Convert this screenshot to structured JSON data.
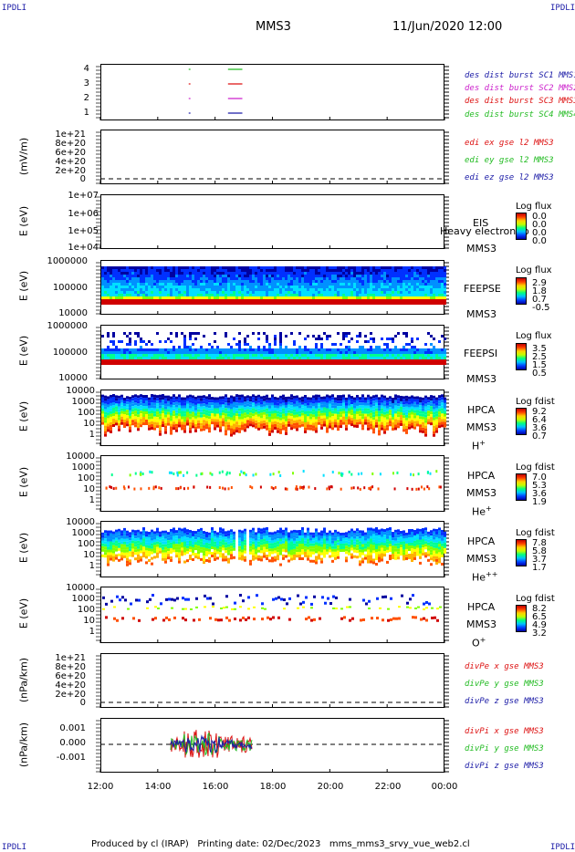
{
  "corners": {
    "tl": "IPDLI",
    "tr": "IPDLI",
    "bl": "IPDLI",
    "br": "IPDLI"
  },
  "header": {
    "mission": "MMS3",
    "datetime": "11/Jun/2020 12:00"
  },
  "footer": {
    "producer": "Produced by cl (IRAP)",
    "printing": "Printing date: 02/Dec/2023",
    "file": "mms_mms3_srvy_vue_web2.cl"
  },
  "x_ticks": [
    "12:00",
    "14:00",
    "16:00",
    "18:00",
    "20:00",
    "22:00",
    "00:00"
  ],
  "colors": {
    "c1": "#1a1aa6",
    "c2": "#cc22cc",
    "c3": "#dd1111",
    "c4": "#22bb22"
  },
  "chart_data": [
    {
      "type": "scatter",
      "id": "burst",
      "yticks": [
        "4",
        "3",
        "2",
        "1"
      ],
      "legend": [
        "des dist burst SC1 MMS1",
        "des dist burst SC2 MMS2",
        "des dist burst SC3 MMS3",
        "des dist burst SC4 MMS4"
      ],
      "segments": [
        {
          "sc": 4,
          "x": [
            15.08,
            15.14
          ]
        },
        {
          "sc": 4,
          "x": [
            16.45,
            16.95
          ]
        },
        {
          "sc": 3,
          "x": [
            15.08,
            15.14
          ]
        },
        {
          "sc": 3,
          "x": [
            16.45,
            16.95
          ]
        },
        {
          "sc": 2,
          "x": [
            15.08,
            15.14
          ]
        },
        {
          "sc": 2,
          "x": [
            16.45,
            16.95
          ]
        },
        {
          "sc": 1,
          "x": [
            15.08,
            15.14
          ]
        },
        {
          "sc": 1,
          "x": [
            16.45,
            16.95
          ]
        }
      ]
    },
    {
      "type": "line",
      "id": "edi",
      "ylabel": "(mV/m)",
      "yticks": [
        "1e+21",
        "8e+20",
        "6e+20",
        "4e+20",
        "2e+20",
        "0"
      ],
      "legend": [
        "edi ex gse l2 MMS3",
        "edi ey gse l2 MMS3",
        "edi ez gse l2 MMS3"
      ]
    },
    {
      "type": "heatmap",
      "id": "eis",
      "ylabel": "E (eV)",
      "yticks": [
        "1e+07",
        "1e+06",
        "1e+05",
        "1e+04"
      ],
      "name": [
        "EIS",
        "MMS3"
      ],
      "overlay": "Heavy electron to",
      "cbar_title": "Log flux",
      "cbar_ticks": [
        "0.0",
        "0.0",
        "0.0",
        "0.0"
      ]
    },
    {
      "type": "heatmap",
      "id": "feepse",
      "ylabel": "E (eV)",
      "yticks": [
        "1000000",
        "100000",
        "10000"
      ],
      "name": [
        "FEEPSE",
        "MMS3"
      ],
      "cbar_title": "Log flux",
      "cbar_ticks": [
        "2.9",
        "1.8",
        "0.7",
        "-0.5"
      ]
    },
    {
      "type": "heatmap",
      "id": "feepsi",
      "ylabel": "E (eV)",
      "yticks": [
        "1000000",
        "100000",
        "10000"
      ],
      "name": [
        "FEEPSI",
        "MMS3"
      ],
      "cbar_title": "Log flux",
      "cbar_ticks": [
        "3.5",
        "2.5",
        "1.5",
        "0.5"
      ]
    },
    {
      "type": "heatmap",
      "id": "hpca_h",
      "ylabel": "E (eV)",
      "yticks": [
        "10000",
        "1000",
        "100",
        "10",
        "1"
      ],
      "name": [
        "HPCA",
        "MMS3",
        "H",
        "+"
      ],
      "cbar_title": "Log fdist",
      "cbar_ticks": [
        "9.2",
        "6.4",
        "3.6",
        "0.7"
      ]
    },
    {
      "type": "heatmap",
      "id": "hpca_he1",
      "ylabel": "E (eV)",
      "yticks": [
        "10000",
        "1000",
        "100",
        "10",
        "1"
      ],
      "name": [
        "HPCA",
        "MMS3",
        "He",
        "+"
      ],
      "cbar_title": "Log fdist",
      "cbar_ticks": [
        "7.0",
        "5.3",
        "3.6",
        "1.9"
      ]
    },
    {
      "type": "heatmap",
      "id": "hpca_he2",
      "ylabel": "E (eV)",
      "yticks": [
        "10000",
        "1000",
        "100",
        "10",
        "1"
      ],
      "name": [
        "HPCA",
        "MMS3",
        "He",
        "++"
      ],
      "cbar_title": "Log fdist",
      "cbar_ticks": [
        "7.8",
        "5.8",
        "3.7",
        "1.7"
      ]
    },
    {
      "type": "heatmap",
      "id": "hpca_o",
      "ylabel": "E (eV)",
      "yticks": [
        "10000",
        "1000",
        "100",
        "10",
        "1"
      ],
      "name": [
        "HPCA",
        "MMS3",
        "O",
        "+"
      ],
      "cbar_title": "Log fdist",
      "cbar_ticks": [
        "8.2",
        "6.5",
        "4.9",
        "3.2"
      ]
    },
    {
      "type": "line",
      "id": "divpe",
      "ylabel": "(nPa/km)",
      "yticks": [
        "1e+21",
        "8e+20",
        "6e+20",
        "4e+20",
        "2e+20",
        "0"
      ],
      "legend": [
        "divPe x gse MMS3",
        "divPe y gse MMS3",
        "divPe z gse MMS3"
      ]
    },
    {
      "type": "line",
      "id": "divpi",
      "ylabel": "(nPa/km)",
      "yticks": [
        "0.001",
        "0.000",
        "-0.001"
      ],
      "legend": [
        "divPi x gse MMS3",
        "divPi y gse MMS3",
        "divPi z gse MMS3"
      ],
      "x_range": [
        14.45,
        17.3
      ]
    }
  ]
}
